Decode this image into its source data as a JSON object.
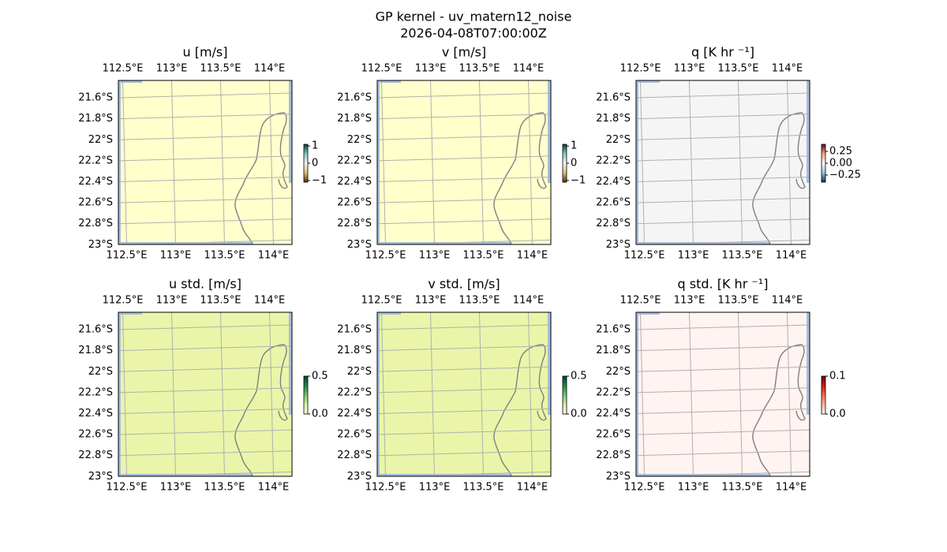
{
  "figure": {
    "title": "GP kernel - uv_matern12_noise",
    "subtitle": "2026-04-08T07:00:00Z",
    "lonlim": [
      112.435,
      114.21
    ],
    "latlim": [
      -23.02,
      -21.457
    ],
    "lonticks": [
      {
        "value": 112.5,
        "label": "112.5°E"
      },
      {
        "value": 113,
        "label": "113°E"
      },
      {
        "value": 113.5,
        "label": "113.5°E"
      },
      {
        "value": 114,
        "label": "114°E"
      }
    ],
    "latticks": [
      {
        "value": -21.6,
        "label": "21.6°S"
      },
      {
        "value": -21.8,
        "label": "21.8°S"
      },
      {
        "value": -22,
        "label": "22°S"
      },
      {
        "value": -22.2,
        "label": "22.2°S"
      },
      {
        "value": -22.4,
        "label": "22.4°S"
      },
      {
        "value": -22.6,
        "label": "22.6°S"
      },
      {
        "value": -22.8,
        "label": "22.8°S"
      },
      {
        "value": -23,
        "label": "23°S"
      }
    ],
    "panels": [
      {
        "title": "u [m/s]",
        "background": "#ffffcc",
        "colorbar": {
          "colors": [
            "#543005",
            "#dfc27d",
            "#f5f5f5",
            "#80cdc1",
            "#003c30"
          ],
          "lim": [
            -1.1,
            1.1
          ],
          "ticks": [
            1,
            0,
            {
              "value": -1,
              "label": "−1"
            }
          ]
        }
      },
      {
        "title": "v [m/s]",
        "background": "#ffffcc",
        "colorbar": {
          "colors": [
            "#543005",
            "#dfc27d",
            "#f5f5f5",
            "#80cdc1",
            "#003c30"
          ],
          "lim": [
            -1.1,
            1.1
          ],
          "ticks": [
            1,
            0,
            {
              "value": -1,
              "label": "−1"
            }
          ]
        }
      },
      {
        "title": "q [K hr ⁻¹]",
        "background": "#f5f5f5",
        "colorbar": {
          "colors": [
            "#053061",
            "#92c5de",
            "#f7f7f7",
            "#f4a582",
            "#67001f"
          ],
          "lim": [
            -0.4,
            0.4
          ],
          "ticks": [
            0.25,
            {
              "value": 0,
              "label": "0.00"
            },
            {
              "value": -0.25,
              "label": "−0.25"
            }
          ]
        }
      },
      {
        "title": "u std. [m/s]",
        "background": "#eaf5a9",
        "colorbar": {
          "colors": [
            "#ffffe5",
            "#d9f0a3",
            "#78c679",
            "#238443",
            "#004529"
          ],
          "lim": [
            0,
            0.5
          ],
          "ticks": [
            0.5,
            {
              "value": 0,
              "label": "0.0"
            }
          ]
        }
      },
      {
        "title": "v std. [m/s]",
        "background": "#eaf5a9",
        "colorbar": {
          "colors": [
            "#ffffe5",
            "#d9f0a3",
            "#78c679",
            "#238443",
            "#004529"
          ],
          "lim": [
            0,
            0.5
          ],
          "ticks": [
            0.5,
            {
              "value": 0,
              "label": "0.0"
            }
          ]
        }
      },
      {
        "title": "q std. [K hr ⁻¹]",
        "background": "#fff4f1",
        "colorbar": {
          "colors": [
            "#fff5f0",
            "#fcbba1",
            "#fb6a4a",
            "#cb181d",
            "#67000d"
          ],
          "lim": [
            0,
            0.1
          ],
          "ticks": [
            0.1,
            {
              "value": 0,
              "label": "0.0"
            }
          ]
        }
      }
    ]
  }
}
